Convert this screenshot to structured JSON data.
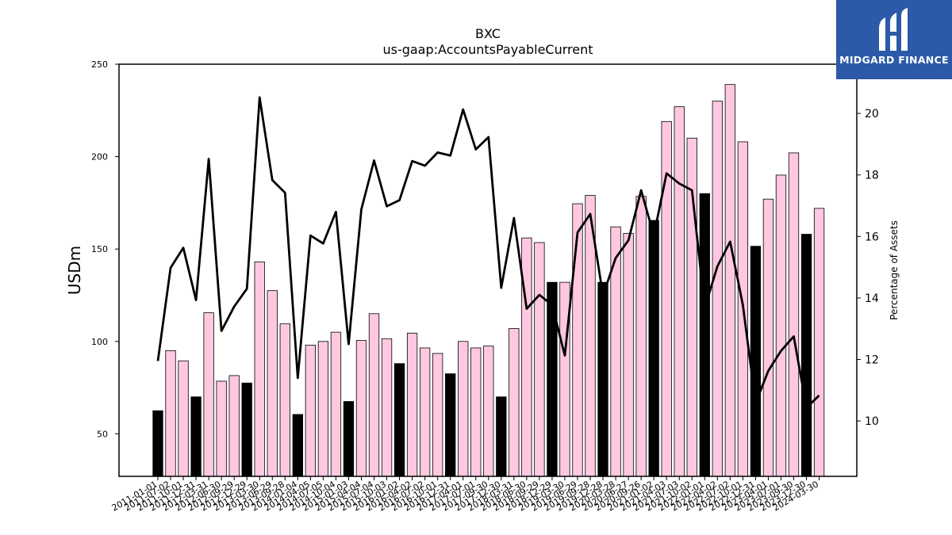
{
  "brand": {
    "name": "MIDGARD FINANCE",
    "color": "#2c5aa8"
  },
  "chart_data": {
    "type": "bar",
    "title": "BXC",
    "subtitle": "us-gaap:AccountsPayableCurrent",
    "ylabel": "USDm",
    "y2label": "Percentage of Assets",
    "ylim": [
      27,
      250
    ],
    "y2lim": [
      8.2,
      21.6
    ],
    "yticks": [
      50,
      100,
      150,
      200,
      250
    ],
    "y2ticks": [
      10,
      12,
      14,
      16,
      18,
      20
    ],
    "colors": {
      "q4_bar": "#000000",
      "other_bar": "#ffc8e0",
      "line": "#000000"
    },
    "categories": [
      "2011-01-01",
      "2011-07-02",
      "2011-10-01",
      "2011-12-31",
      "2012-03-31",
      "2012-06-30",
      "2012-09-29",
      "2012-12-29",
      "2013-03-30",
      "2013-06-29",
      "2013-09-28",
      "2014-01-04",
      "2014-04-05",
      "2014-07-05",
      "2014-10-04",
      "2015-01-03",
      "2015-04-04",
      "2015-07-04",
      "2015-10-03",
      "2016-01-02",
      "2016-04-02",
      "2016-07-02",
      "2016-10-01",
      "2016-12-31",
      "2017-04-01",
      "2017-07-01",
      "2017-09-30",
      "2017-12-30",
      "2018-03-31",
      "2018-06-30",
      "2018-09-29",
      "2018-12-29",
      "2019-03-30",
      "2019-06-29",
      "2019-09-28",
      "2019-12-28",
      "2020-03-28",
      "2020-06-27",
      "2020-09-26",
      "2021-01-02",
      "2021-04-03",
      "2021-07-03",
      "2021-10-02",
      "2022-01-01",
      "2022-04-02",
      "2022-07-02",
      "2022-10-01",
      "2022-12-31",
      "2023-04-01",
      "2023-07-01",
      "2023-09-30",
      "2023-12-30",
      "2024-03-30"
    ],
    "series": [
      {
        "kind": "bar",
        "values": [
          62.5,
          95,
          89.5,
          70,
          115.5,
          78.5,
          81.5,
          77.5,
          143,
          127.5,
          109.5,
          60.5,
          98,
          100,
          105,
          67.5,
          100.5,
          115,
          101.5,
          88,
          104.5,
          96.5,
          93.5,
          82.5,
          100,
          96.5,
          97.5,
          70,
          107,
          156,
          153.5,
          132,
          132,
          174.5,
          179,
          132,
          162,
          158.5,
          178.5,
          165.5,
          219,
          227,
          210,
          180,
          230,
          239,
          208,
          151.5,
          177,
          190,
          202,
          158,
          172
        ],
        "q4_flags": [
          1,
          0,
          0,
          1,
          0,
          0,
          0,
          1,
          0,
          0,
          0,
          1,
          0,
          0,
          0,
          1,
          0,
          0,
          0,
          1,
          0,
          0,
          0,
          1,
          0,
          0,
          0,
          1,
          0,
          0,
          0,
          1,
          0,
          0,
          0,
          1,
          0,
          0,
          0,
          1,
          0,
          0,
          0,
          1,
          0,
          0,
          0,
          1,
          0,
          0,
          0,
          1,
          0
        ]
      },
      {
        "kind": "line",
        "axis": "right",
        "values": [
          11.95,
          14.98,
          15.63,
          13.93,
          18.52,
          12.93,
          13.72,
          14.3,
          20.52,
          17.83,
          17.42,
          11.4,
          16.03,
          15.77,
          16.8,
          12.5,
          16.88,
          18.47,
          16.98,
          17.18,
          18.45,
          18.3,
          18.73,
          18.63,
          20.13,
          18.83,
          19.23,
          14.33,
          16.6,
          13.65,
          14.1,
          13.77,
          12.13,
          16.13,
          16.73,
          14.08,
          15.3,
          15.87,
          17.5,
          16.03,
          18.05,
          17.72,
          17.5,
          13.68,
          15.03,
          15.83,
          13.77,
          10.58,
          11.63,
          12.28,
          12.75,
          10.43,
          10.83
        ]
      }
    ]
  }
}
